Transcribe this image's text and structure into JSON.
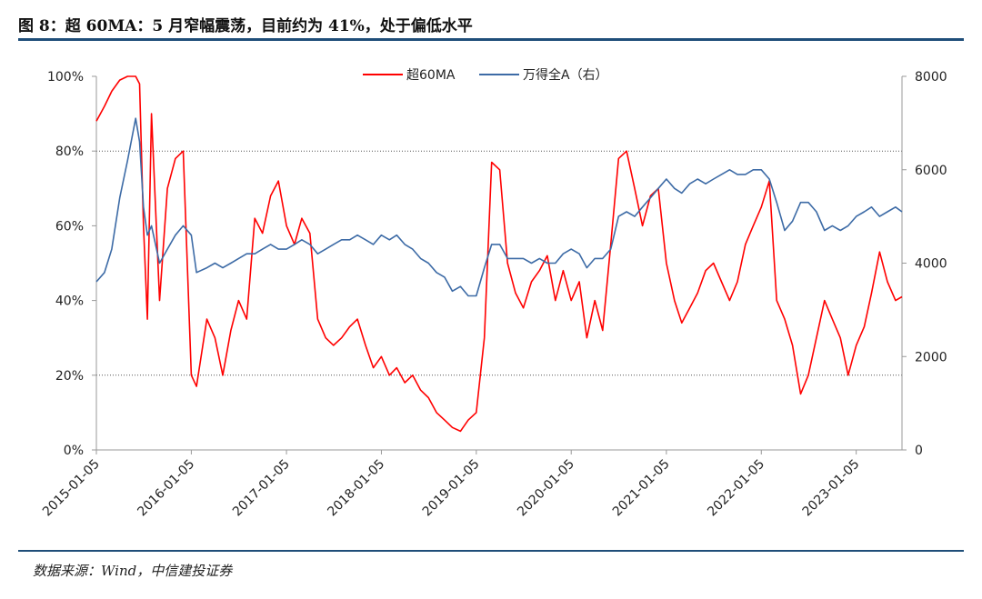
{
  "figure": {
    "title": "图 8：超 60MA：5 月窄幅震荡，目前约为 41%，处于偏低水平",
    "source": "数据来源：Wind，中信建投证券"
  },
  "chart_data": {
    "type": "line",
    "title": "",
    "xlabel": "",
    "ylabel_left": "",
    "ylabel_right": "",
    "x_ticks": [
      "2015-01-05",
      "2016-01-05",
      "2017-01-05",
      "2018-01-05",
      "2019-01-05",
      "2020-01-05",
      "2021-01-05",
      "2022-01-05",
      "2023-01-05"
    ],
    "x_range": [
      "2015-01-05",
      "2023-06-30"
    ],
    "y_left": {
      "range": [
        0,
        100
      ],
      "ticks": [
        "0%",
        "20%",
        "40%",
        "60%",
        "80%",
        "100%"
      ]
    },
    "y_right": {
      "range": [
        0,
        8000
      ],
      "ticks": [
        "0",
        "2000",
        "4000",
        "6000",
        "8000"
      ]
    },
    "reference_lines_left": [
      20,
      80
    ],
    "legend_placement": "top-center",
    "series": [
      {
        "name": "超60MA",
        "axis": "left",
        "color": "#ff0000",
        "x": [
          "2015-01-05",
          "2015-02-05",
          "2015-03-05",
          "2015-04-05",
          "2015-05-05",
          "2015-06-05",
          "2015-06-20",
          "2015-07-05",
          "2015-07-20",
          "2015-08-05",
          "2015-09-05",
          "2015-10-05",
          "2015-11-05",
          "2015-12-05",
          "2016-01-05",
          "2016-01-25",
          "2016-03-05",
          "2016-04-05",
          "2016-05-05",
          "2016-06-05",
          "2016-07-05",
          "2016-08-05",
          "2016-09-05",
          "2016-10-05",
          "2016-11-05",
          "2016-12-05",
          "2017-01-05",
          "2017-02-05",
          "2017-03-05",
          "2017-04-05",
          "2017-05-05",
          "2017-06-05",
          "2017-07-05",
          "2017-08-05",
          "2017-09-05",
          "2017-10-05",
          "2017-11-05",
          "2017-12-05",
          "2018-01-05",
          "2018-02-05",
          "2018-03-05",
          "2018-04-05",
          "2018-05-05",
          "2018-06-05",
          "2018-07-05",
          "2018-08-05",
          "2018-09-05",
          "2018-10-05",
          "2018-11-05",
          "2018-12-05",
          "2019-01-05",
          "2019-02-05",
          "2019-03-05",
          "2019-04-05",
          "2019-05-05",
          "2019-06-05",
          "2019-07-05",
          "2019-08-05",
          "2019-09-05",
          "2019-10-05",
          "2019-11-05",
          "2019-12-05",
          "2020-01-05",
          "2020-02-05",
          "2020-03-05",
          "2020-04-05",
          "2020-05-05",
          "2020-06-05",
          "2020-07-05",
          "2020-08-05",
          "2020-09-05",
          "2020-10-05",
          "2020-11-05",
          "2020-12-05",
          "2021-01-05",
          "2021-02-05",
          "2021-03-05",
          "2021-04-05",
          "2021-05-05",
          "2021-06-05",
          "2021-07-05",
          "2021-08-05",
          "2021-09-05",
          "2021-10-05",
          "2021-11-05",
          "2021-12-05",
          "2022-01-05",
          "2022-02-05",
          "2022-03-05",
          "2022-04-05",
          "2022-05-05",
          "2022-06-05",
          "2022-07-05",
          "2022-08-05",
          "2022-09-05",
          "2022-10-05",
          "2022-11-05",
          "2022-12-05",
          "2023-01-05",
          "2023-02-05",
          "2023-03-05",
          "2023-04-05",
          "2023-05-05",
          "2023-06-05",
          "2023-06-30"
        ],
        "y": [
          88,
          92,
          96,
          99,
          100,
          100,
          98,
          60,
          35,
          90,
          40,
          70,
          78,
          80,
          20,
          17,
          35,
          30,
          20,
          32,
          40,
          35,
          62,
          58,
          68,
          72,
          60,
          55,
          62,
          58,
          35,
          30,
          28,
          30,
          33,
          35,
          28,
          22,
          25,
          20,
          22,
          18,
          20,
          16,
          14,
          10,
          8,
          6,
          5,
          8,
          10,
          30,
          77,
          75,
          50,
          42,
          38,
          45,
          48,
          52,
          40,
          48,
          40,
          45,
          30,
          40,
          32,
          55,
          78,
          80,
          70,
          60,
          68,
          70,
          50,
          40,
          34,
          38,
          42,
          48,
          50,
          45,
          40,
          45,
          55,
          60,
          65,
          72,
          40,
          35,
          28,
          15,
          20,
          30,
          40,
          35,
          30,
          20,
          28,
          33,
          42,
          53,
          45,
          40,
          41
        ]
      },
      {
        "name": "万得全A（右）",
        "axis": "right",
        "color": "#3d6ba6",
        "x": [
          "2015-01-05",
          "2015-02-05",
          "2015-03-05",
          "2015-04-05",
          "2015-05-05",
          "2015-06-05",
          "2015-06-20",
          "2015-07-05",
          "2015-07-20",
          "2015-08-05",
          "2015-09-05",
          "2015-10-05",
          "2015-11-05",
          "2015-12-05",
          "2016-01-05",
          "2016-01-25",
          "2016-03-05",
          "2016-04-05",
          "2016-05-05",
          "2016-06-05",
          "2016-07-05",
          "2016-08-05",
          "2016-09-05",
          "2016-10-05",
          "2016-11-05",
          "2016-12-05",
          "2017-01-05",
          "2017-02-05",
          "2017-03-05",
          "2017-04-05",
          "2017-05-05",
          "2017-06-05",
          "2017-07-05",
          "2017-08-05",
          "2017-09-05",
          "2017-10-05",
          "2017-11-05",
          "2017-12-05",
          "2018-01-05",
          "2018-02-05",
          "2018-03-05",
          "2018-04-05",
          "2018-05-05",
          "2018-06-05",
          "2018-07-05",
          "2018-08-05",
          "2018-09-05",
          "2018-10-05",
          "2018-11-05",
          "2018-12-05",
          "2019-01-05",
          "2019-02-05",
          "2019-03-05",
          "2019-04-05",
          "2019-05-05",
          "2019-06-05",
          "2019-07-05",
          "2019-08-05",
          "2019-09-05",
          "2019-10-05",
          "2019-11-05",
          "2019-12-05",
          "2020-01-05",
          "2020-02-05",
          "2020-03-05",
          "2020-04-05",
          "2020-05-05",
          "2020-06-05",
          "2020-07-05",
          "2020-08-05",
          "2020-09-05",
          "2020-10-05",
          "2020-11-05",
          "2020-12-05",
          "2021-01-05",
          "2021-02-05",
          "2021-03-05",
          "2021-04-05",
          "2021-05-05",
          "2021-06-05",
          "2021-07-05",
          "2021-08-05",
          "2021-09-05",
          "2021-10-05",
          "2021-11-05",
          "2021-12-05",
          "2022-01-05",
          "2022-02-05",
          "2022-03-05",
          "2022-04-05",
          "2022-05-05",
          "2022-06-05",
          "2022-07-05",
          "2022-08-05",
          "2022-09-05",
          "2022-10-05",
          "2022-11-05",
          "2022-12-05",
          "2023-01-05",
          "2023-02-05",
          "2023-03-05",
          "2023-04-05",
          "2023-05-05",
          "2023-06-05",
          "2023-06-30"
        ],
        "y": [
          3600,
          3800,
          4300,
          5400,
          6200,
          7100,
          6600,
          5200,
          4600,
          4800,
          4000,
          4300,
          4600,
          4800,
          4600,
          3800,
          3900,
          4000,
          3900,
          4000,
          4100,
          4200,
          4200,
          4300,
          4400,
          4300,
          4300,
          4400,
          4500,
          4400,
          4200,
          4300,
          4400,
          4500,
          4500,
          4600,
          4500,
          4400,
          4600,
          4500,
          4600,
          4400,
          4300,
          4100,
          4000,
          3800,
          3700,
          3400,
          3500,
          3300,
          3300,
          3900,
          4400,
          4400,
          4100,
          4100,
          4100,
          4000,
          4100,
          4000,
          4000,
          4200,
          4300,
          4200,
          3900,
          4100,
          4100,
          4300,
          5000,
          5100,
          5000,
          5200,
          5400,
          5600,
          5800,
          5600,
          5500,
          5700,
          5800,
          5700,
          5800,
          5900,
          6000,
          5900,
          5900,
          6000,
          6000,
          5800,
          5300,
          4700,
          4900,
          5300,
          5300,
          5100,
          4700,
          4800,
          4700,
          4800,
          5000,
          5100,
          5200,
          5000,
          5100,
          5200,
          5100
        ]
      }
    ]
  }
}
